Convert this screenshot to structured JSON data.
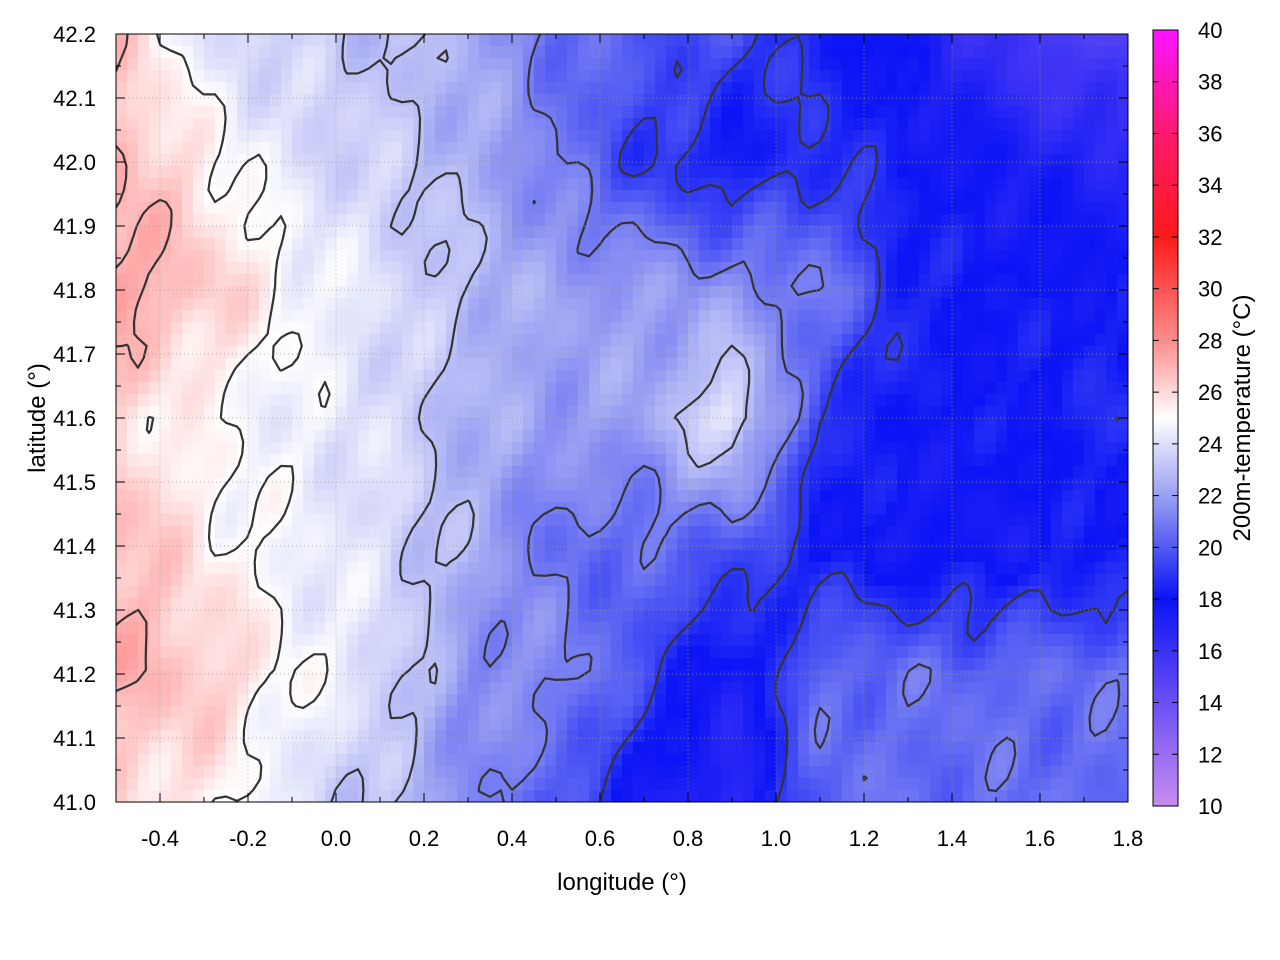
{
  "chart_data": {
    "type": "heatmap",
    "title": "",
    "xlabel": "longitude (°)",
    "ylabel": "latitude (°)",
    "colorbar_label": "200m-temperature (°C)",
    "xlim": [
      -0.5,
      1.8
    ],
    "ylim": [
      41.0,
      42.2
    ],
    "x_ticks": [
      -0.4,
      -0.2,
      0.0,
      0.2,
      0.4,
      0.6,
      0.8,
      1.0,
      1.2,
      1.4,
      1.6,
      1.8
    ],
    "x_tick_labels": [
      "-0.4",
      "-0.2",
      "0.0",
      "0.2",
      "0.4",
      "0.6",
      "0.8",
      "1.0",
      "1.2",
      "1.4",
      "1.6",
      "1.8"
    ],
    "y_ticks": [
      41.0,
      41.1,
      41.2,
      41.3,
      41.4,
      41.5,
      41.6,
      41.7,
      41.8,
      41.9,
      42.0,
      42.1,
      42.2
    ],
    "y_tick_labels": [
      "41.0",
      "41.1",
      "41.2",
      "41.3",
      "41.4",
      "41.5",
      "41.6",
      "41.7",
      "41.8",
      "41.9",
      "42.0",
      "42.1",
      "42.2"
    ],
    "colorbar_range": [
      10,
      40
    ],
    "colorbar_ticks": [
      10,
      12,
      14,
      16,
      18,
      20,
      22,
      24,
      26,
      28,
      30,
      32,
      34,
      36,
      38,
      40
    ],
    "colorbar_tick_labels": [
      "10",
      "12",
      "14",
      "16",
      "18",
      "20",
      "22",
      "24",
      "26",
      "28",
      "30",
      "32",
      "34",
      "36",
      "38",
      "40"
    ],
    "colormap": [
      {
        "value": 10,
        "color": "#c88cf0"
      },
      {
        "value": 14,
        "color": "#6a4ff5"
      },
      {
        "value": 18,
        "color": "#0a14f5"
      },
      {
        "value": 22,
        "color": "#9aa0f2"
      },
      {
        "value": 25,
        "color": "#ffffff"
      },
      {
        "value": 28,
        "color": "#ff8c8c"
      },
      {
        "value": 32,
        "color": "#ff1a1a"
      },
      {
        "value": 36,
        "color": "#ff1a6e"
      },
      {
        "value": 40,
        "color": "#ff14ff"
      }
    ],
    "grid": true,
    "contours": true,
    "contour_color": "#333333",
    "temperature_field": {
      "x": [
        -0.5,
        -0.3,
        -0.1,
        0.1,
        0.3,
        0.5,
        0.7,
        0.9,
        1.1,
        1.3,
        1.5,
        1.7
      ],
      "y": [
        42.2,
        42.0,
        41.8,
        41.6,
        41.4,
        41.2,
        41.0
      ],
      "values": [
        [
          26.5,
          24.0,
          23.5,
          23.0,
          22.5,
          20.5,
          20.0,
          19.5,
          18.5,
          17.5,
          16.0,
          15.0
        ],
        [
          27.0,
          25.5,
          24.0,
          23.5,
          22.5,
          21.0,
          19.0,
          18.0,
          19.0,
          18.0,
          17.5,
          17.0
        ],
        [
          27.5,
          26.5,
          25.0,
          24.0,
          23.0,
          22.0,
          22.0,
          21.5,
          21.0,
          18.5,
          18.0,
          18.0
        ],
        [
          26.0,
          25.0,
          24.5,
          24.0,
          22.5,
          22.0,
          22.0,
          24.5,
          19.0,
          18.0,
          18.0,
          18.5
        ],
        [
          27.0,
          25.5,
          24.5,
          24.0,
          22.5,
          20.5,
          20.5,
          20.0,
          18.0,
          17.5,
          17.5,
          18.0
        ],
        [
          27.0,
          26.5,
          25.0,
          24.0,
          21.5,
          21.5,
          19.5,
          17.0,
          20.5,
          20.5,
          20.5,
          20.5
        ],
        [
          26.0,
          25.5,
          24.0,
          23.0,
          21.5,
          20.0,
          17.5,
          16.5,
          20.5,
          20.5,
          20.5,
          20.5
        ]
      ]
    }
  }
}
